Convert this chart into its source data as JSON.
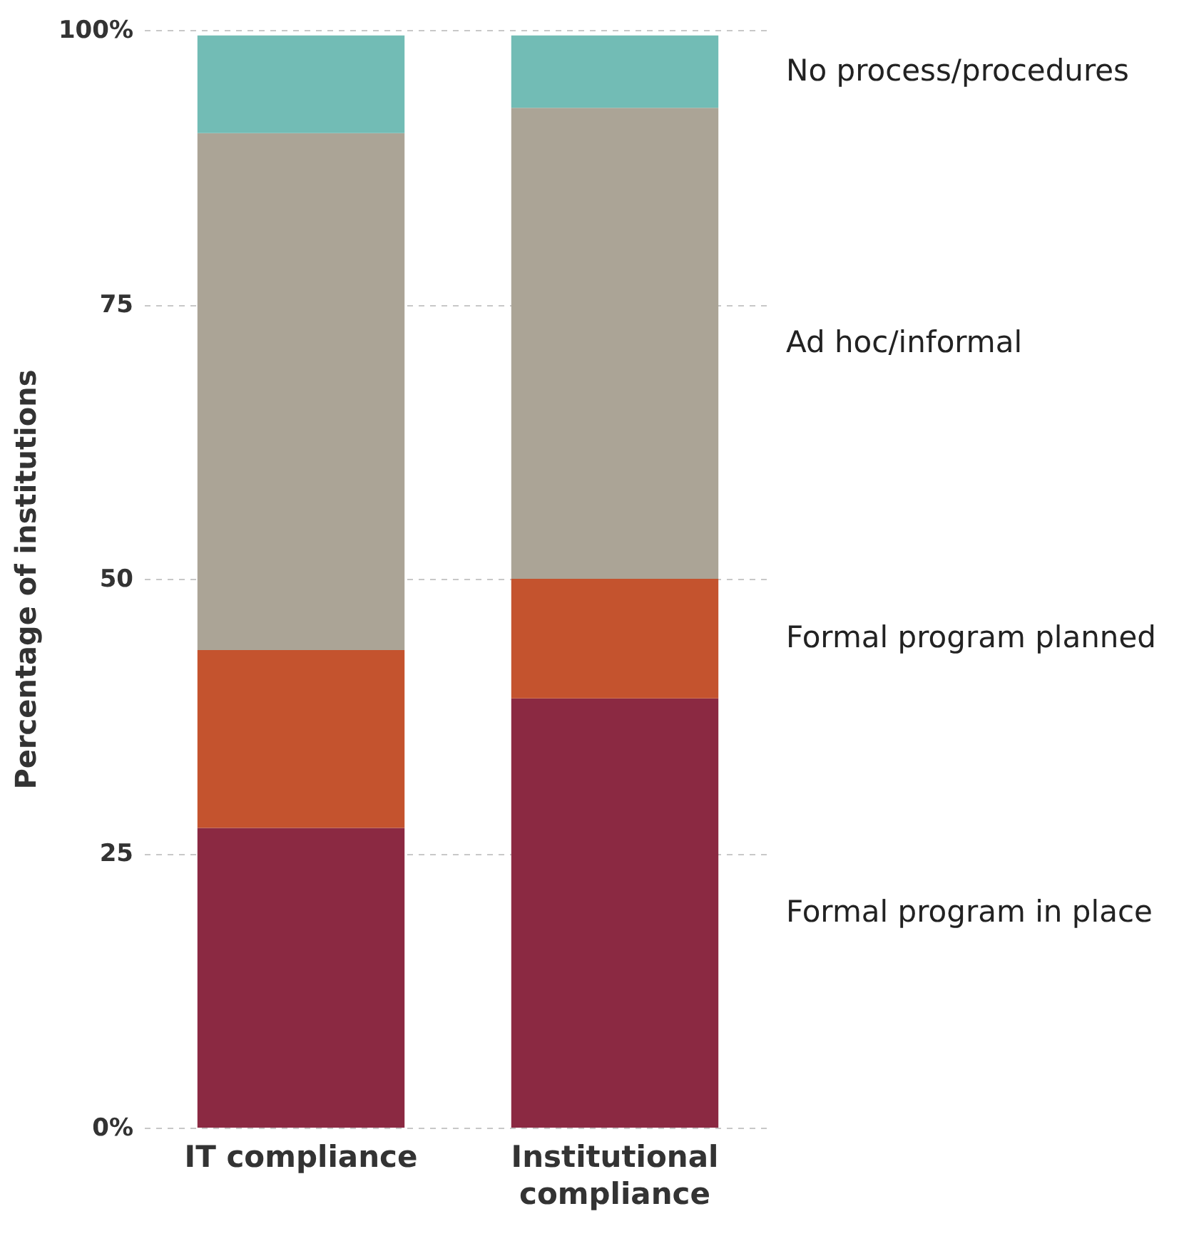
{
  "chart_data": {
    "type": "bar",
    "stacked": true,
    "ylabel": "Percentage of institutions",
    "categories": [
      "IT compliance",
      "Institutional compliance"
    ],
    "series": [
      {
        "name": "Formal program in place",
        "color": "#8b2942",
        "values": [
          27.3,
          39.1
        ]
      },
      {
        "name": "Formal program planned",
        "color": "#c4532e",
        "values": [
          16.2,
          10.9
        ]
      },
      {
        "name": "Ad hoc/informal",
        "color": "#aba496",
        "values": [
          47.1,
          42.9
        ]
      },
      {
        "name": "No process/procedures",
        "color": "#72bcb5",
        "values": [
          8.9,
          6.6
        ]
      }
    ],
    "ylim": [
      0,
      100
    ],
    "yticks": [
      {
        "value": 0,
        "label": "0%"
      },
      25,
      50,
      75,
      {
        "value": 100,
        "label": "100%"
      }
    ],
    "grid": "y",
    "legend": "right"
  }
}
